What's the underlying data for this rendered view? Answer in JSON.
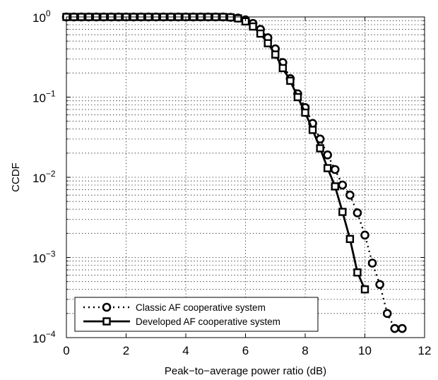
{
  "chart_data": {
    "type": "line",
    "title": "",
    "xlabel": "Peak−to−average power ratio (dB)",
    "ylabel": "CCDF",
    "xlim": [
      0,
      12
    ],
    "ylim": [
      0.0001,
      1
    ],
    "yscale": "log",
    "grid": true,
    "legend_position": "bottom-left",
    "x_ticks": [
      0,
      2,
      4,
      6,
      8,
      10,
      12
    ],
    "y_ticks": [
      {
        "value": 1,
        "base": "10",
        "exp": "0"
      },
      {
        "value": 0.1,
        "base": "10",
        "exp": "−1"
      },
      {
        "value": 0.01,
        "base": "10",
        "exp": "−2"
      },
      {
        "value": 0.001,
        "base": "10",
        "exp": "−3"
      },
      {
        "value": 0.0001,
        "base": "10",
        "exp": "−4"
      }
    ],
    "series": [
      {
        "name": "Classic AF cooperative system",
        "line": "dotted",
        "marker": "circle",
        "color": "#000000",
        "x": [
          0,
          0.25,
          0.5,
          0.75,
          1,
          1.25,
          1.5,
          1.75,
          2,
          2.25,
          2.5,
          2.75,
          3,
          3.25,
          3.5,
          3.75,
          4,
          4.25,
          4.5,
          4.75,
          5,
          5.25,
          5.5,
          5.75,
          6,
          6.25,
          6.5,
          6.75,
          7,
          7.25,
          7.5,
          7.75,
          8,
          8.25,
          8.5,
          8.75,
          9,
          9.25,
          9.5,
          9.75,
          10,
          10.25,
          10.5,
          10.75,
          11,
          11.25
        ],
        "y": [
          1,
          1,
          1,
          1,
          1,
          1,
          1,
          1,
          1,
          1,
          1,
          1,
          1,
          1,
          1,
          1,
          1,
          1,
          1,
          1,
          1,
          1,
          0.99,
          0.97,
          0.92,
          0.83,
          0.7,
          0.55,
          0.4,
          0.27,
          0.17,
          0.11,
          0.074,
          0.047,
          0.03,
          0.019,
          0.0125,
          0.008,
          0.006,
          0.0036,
          0.0019,
          0.00085,
          0.00046,
          0.0002,
          0.00013,
          0.00013
        ]
      },
      {
        "name": "Developed AF cooperative system",
        "line": "solid",
        "marker": "square",
        "color": "#000000",
        "x": [
          0,
          0.25,
          0.5,
          0.75,
          1,
          1.25,
          1.5,
          1.75,
          2,
          2.25,
          2.5,
          2.75,
          3,
          3.25,
          3.5,
          3.75,
          4,
          4.25,
          4.5,
          4.75,
          5,
          5.25,
          5.5,
          5.75,
          6,
          6.25,
          6.5,
          6.75,
          7,
          7.25,
          7.5,
          7.75,
          8,
          8.25,
          8.5,
          8.75,
          9,
          9.25,
          9.5,
          9.75,
          10
        ],
        "y": [
          1,
          1,
          1,
          1,
          1,
          1,
          1,
          1,
          1,
          1,
          1,
          1,
          1,
          1,
          1,
          1,
          1,
          1,
          1,
          1,
          1,
          1,
          0.99,
          0.96,
          0.88,
          0.76,
          0.62,
          0.47,
          0.34,
          0.23,
          0.16,
          0.1,
          0.064,
          0.039,
          0.023,
          0.013,
          0.0077,
          0.0037,
          0.0017,
          0.00065,
          0.0004
        ]
      }
    ]
  }
}
